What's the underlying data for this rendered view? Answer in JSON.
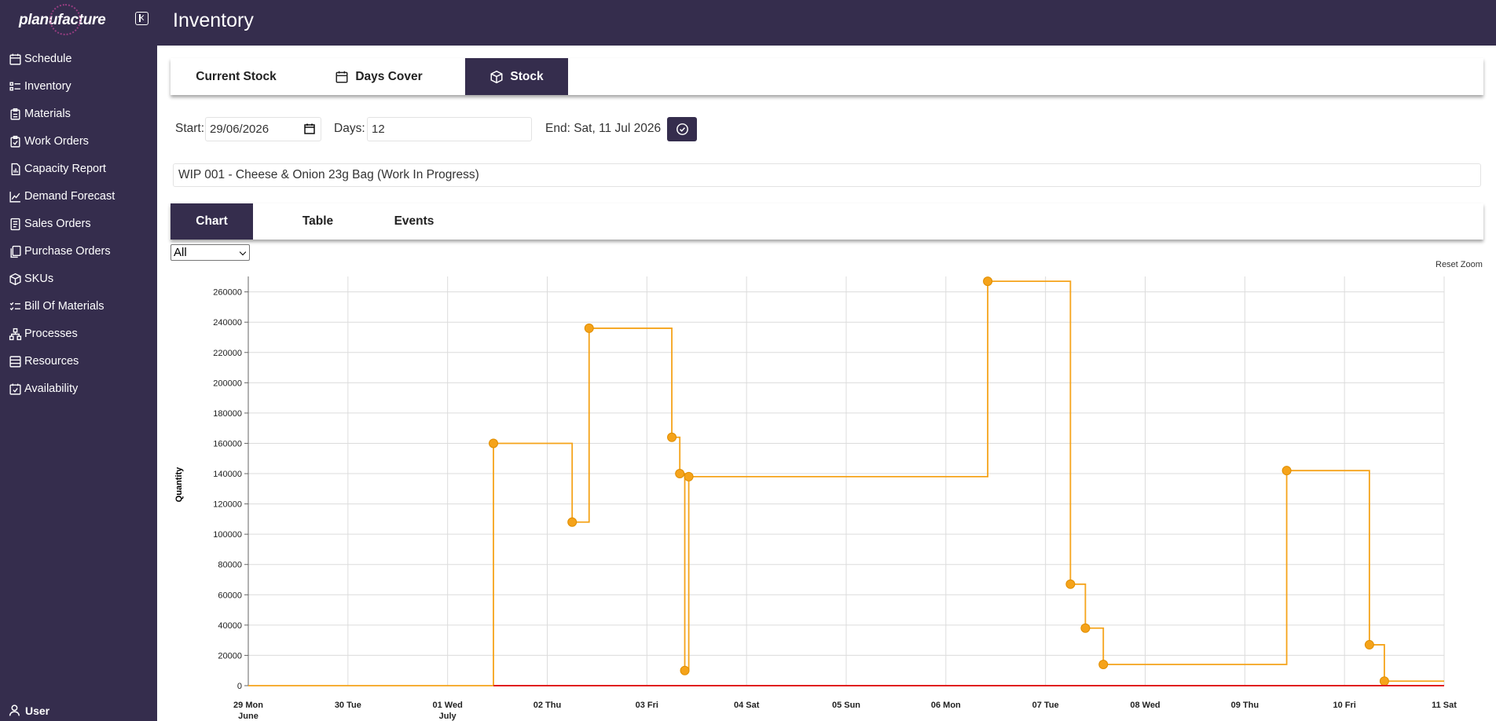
{
  "app": {
    "brand": "planufacture",
    "page_title": "Inventory",
    "user_label": "User"
  },
  "sidebar": {
    "items": [
      {
        "label": "Schedule",
        "icon": "calendar-icon"
      },
      {
        "label": "Inventory",
        "icon": "list-icon"
      },
      {
        "label": "Materials",
        "icon": "clipboard-icon"
      },
      {
        "label": "Work Orders",
        "icon": "clipboard-check-icon"
      },
      {
        "label": "Capacity Report",
        "icon": "report-icon"
      },
      {
        "label": "Demand Forecast",
        "icon": "line-chart-icon"
      },
      {
        "label": "Sales Orders",
        "icon": "document-icon"
      },
      {
        "label": "Purchase Orders",
        "icon": "documents-icon"
      },
      {
        "label": "SKUs",
        "icon": "cube-icon"
      },
      {
        "label": "Bill Of Materials",
        "icon": "checklist-icon"
      },
      {
        "label": "Processes",
        "icon": "flow-icon"
      },
      {
        "label": "Resources",
        "icon": "stack-icon"
      },
      {
        "label": "Availability",
        "icon": "calendar-check-icon"
      }
    ]
  },
  "tabs": {
    "current_stock": "Current Stock",
    "days_cover": "Days Cover",
    "stock": "Stock",
    "active": "Stock"
  },
  "filters": {
    "start_label": "Start:",
    "start_value": "29/06/2026",
    "days_label": "Days:",
    "days_value": "12",
    "end_text": "End: Sat, 11 Jul 2026"
  },
  "item": "WIP 001 - Cheese & Onion 23g Bag (Work In Progress)",
  "view_tabs": {
    "chart": "Chart",
    "table": "Table",
    "events": "Events",
    "active": "Chart"
  },
  "series_filter": {
    "selected": "All"
  },
  "reset_zoom": "Reset Zoom",
  "colors": {
    "primary": "#352d4d",
    "stock_line": "#f5a31a",
    "zero_line": "#e02020"
  },
  "chart_data": {
    "type": "line",
    "step": true,
    "ylabel": "Quantity",
    "xlabel": "",
    "ylim": [
      0,
      265000
    ],
    "xlim": [
      0,
      12
    ],
    "grid": true,
    "y_ticks": [
      0,
      20000,
      40000,
      60000,
      80000,
      100000,
      120000,
      140000,
      160000,
      180000,
      200000,
      220000,
      240000,
      260000
    ],
    "x_ticks": [
      {
        "x": 0,
        "label": "29 Mon",
        "sublabel": "June"
      },
      {
        "x": 1,
        "label": "30 Tue"
      },
      {
        "x": 2,
        "label": "01 Wed",
        "sublabel": "July"
      },
      {
        "x": 3,
        "label": "02 Thu"
      },
      {
        "x": 4,
        "label": "03 Fri"
      },
      {
        "x": 5,
        "label": "04 Sat"
      },
      {
        "x": 6,
        "label": "05 Sun"
      },
      {
        "x": 7,
        "label": "06 Mon"
      },
      {
        "x": 8,
        "label": "07 Tue"
      },
      {
        "x": 9,
        "label": "08 Wed"
      },
      {
        "x": 10,
        "label": "09 Thu"
      },
      {
        "x": 11,
        "label": "10 Fri"
      },
      {
        "x": 12,
        "label": "11 Sat"
      }
    ],
    "series": [
      {
        "color": "#f5a31a",
        "points": [
          {
            "x": 0,
            "y": 0,
            "marker": false
          },
          {
            "x": 2.46,
            "y": 160000,
            "marker": true
          },
          {
            "x": 3.25,
            "y": 108000,
            "marker": true
          },
          {
            "x": 3.42,
            "y": 236000,
            "marker": true
          },
          {
            "x": 4.25,
            "y": 164000,
            "marker": true
          },
          {
            "x": 4.33,
            "y": 140000,
            "marker": true
          },
          {
            "x": 4.38,
            "y": 10000,
            "marker": true
          },
          {
            "x": 4.42,
            "y": 138000,
            "marker": true
          },
          {
            "x": 7.42,
            "y": 267000,
            "marker": true
          },
          {
            "x": 8.25,
            "y": 67000,
            "marker": true
          },
          {
            "x": 8.4,
            "y": 38000,
            "marker": true
          },
          {
            "x": 8.58,
            "y": 14000,
            "marker": true
          },
          {
            "x": 10.42,
            "y": 142000,
            "marker": true
          },
          {
            "x": 11.25,
            "y": 27000,
            "marker": true
          },
          {
            "x": 11.4,
            "y": 3000,
            "marker": true
          },
          {
            "x": 12,
            "y": 3000,
            "marker": false
          }
        ]
      }
    ],
    "reference_line": {
      "y": 0,
      "color": "#e02020"
    }
  }
}
